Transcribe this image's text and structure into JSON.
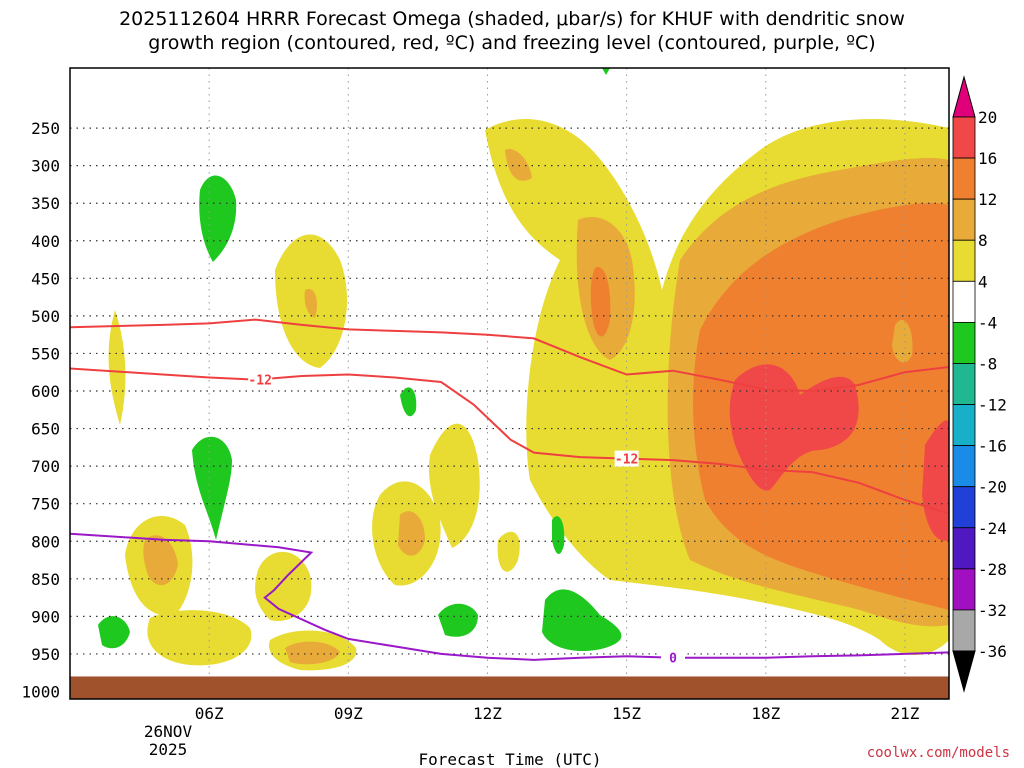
{
  "title": {
    "line1": "2025112604 HRRR Forecast Omega (shaded, μbar/s) for KHUF with dendritic snow",
    "line2": "growth region (contoured, red, ºC) and freezing level (contoured, purple, ºC)"
  },
  "credit": "coolwx.com/models",
  "chart_data": {
    "type": "heatmap",
    "title": "2025112604 HRRR Forecast Omega (shaded, μbar/s) for KHUF with dendritic snow growth region (contoured, red, ºC) and freezing level (contoured, purple, ºC)",
    "xlabel": "Forecast Time (UTC)",
    "ylabel": "",
    "x_ticks": [
      "06Z",
      "09Z",
      "12Z",
      "15Z",
      "18Z",
      "21Z"
    ],
    "x_date_label": [
      "26NOV",
      "2025"
    ],
    "x_range_hours_since_00Z": [
      3.0,
      21.95
    ],
    "y_ticks": [
      250,
      300,
      350,
      400,
      450,
      500,
      550,
      600,
      650,
      700,
      750,
      800,
      850,
      900,
      950,
      1000
    ],
    "y_range_mb": [
      170,
      1010
    ],
    "ground_level_mb": 980,
    "colorbar": {
      "labels": [
        20,
        16,
        12,
        8,
        4,
        -4,
        -8,
        -12,
        -16,
        -20,
        -24,
        -28,
        -32,
        -36
      ],
      "bins": [
        {
          "range": ">20",
          "color": "#e0007a"
        },
        {
          "range": "16 to 20",
          "color": "#f04848"
        },
        {
          "range": "12 to 16",
          "color": "#ee8030"
        },
        {
          "range": "8 to 12",
          "color": "#e8aa38"
        },
        {
          "range": "4 to 8",
          "color": "#e8dc32"
        },
        {
          "range": "-4 to 4",
          "color": "#ffffff"
        },
        {
          "range": "-8 to -4",
          "color": "#1ec81e"
        },
        {
          "range": "-12 to -8",
          "color": "#20b890"
        },
        {
          "range": "-16 to -12",
          "color": "#18b0c8"
        },
        {
          "range": "-20 to -16",
          "color": "#1a8ce8"
        },
        {
          "range": "-24 to -20",
          "color": "#2040d8"
        },
        {
          "range": "-28 to -24",
          "color": "#5018c0"
        },
        {
          "range": "-32 to -28",
          "color": "#a010c0"
        },
        {
          "range": "-36 to -32",
          "color": "#a8a8a8"
        },
        {
          "range": "<-36",
          "color": "#000000"
        }
      ]
    },
    "contours": [
      {
        "name": "dendritic-top (-18C)",
        "color": "#ee4040",
        "label": "",
        "points": [
          [
            3.0,
            515
          ],
          [
            5.0,
            512
          ],
          [
            6.0,
            510
          ],
          [
            7.0,
            505
          ],
          [
            8.0,
            512
          ],
          [
            9.0,
            518
          ],
          [
            10.0,
            520
          ],
          [
            11.0,
            522
          ],
          [
            12.0,
            525
          ],
          [
            13.0,
            530
          ],
          [
            14.0,
            555
          ],
          [
            15.0,
            578
          ],
          [
            16.0,
            573
          ],
          [
            17.0,
            585
          ],
          [
            18.0,
            598
          ],
          [
            19.0,
            600
          ],
          [
            20.0,
            592
          ],
          [
            21.0,
            575
          ],
          [
            21.95,
            568
          ]
        ]
      },
      {
        "name": "dendritic-bottom (-12C)",
        "color": "#ee4040",
        "label": "-12",
        "points": [
          [
            3.0,
            570
          ],
          [
            5.0,
            578
          ],
          [
            6.0,
            582
          ],
          [
            7.0,
            585
          ],
          [
            8.0,
            580
          ],
          [
            9.0,
            578
          ],
          [
            10.0,
            582
          ],
          [
            11.0,
            588
          ],
          [
            11.7,
            618
          ],
          [
            12.5,
            665
          ],
          [
            13.0,
            682
          ],
          [
            14.0,
            688
          ],
          [
            15.0,
            690
          ],
          [
            16.0,
            692
          ],
          [
            17.0,
            697
          ],
          [
            18.0,
            705
          ],
          [
            19.0,
            708
          ],
          [
            20.0,
            722
          ],
          [
            21.0,
            745
          ],
          [
            21.95,
            763
          ]
        ]
      },
      {
        "name": "freezing-level (0C)",
        "color": "#9a18c8",
        "label": "0",
        "points": [
          [
            3.0,
            790
          ],
          [
            5.0,
            798
          ],
          [
            6.0,
            800
          ],
          [
            7.5,
            808
          ],
          [
            8.2,
            815
          ],
          [
            7.7,
            845
          ],
          [
            7.4,
            865
          ],
          [
            7.2,
            875
          ],
          [
            7.5,
            890
          ],
          [
            8.5,
            918
          ],
          [
            9.0,
            930
          ],
          [
            10.0,
            940
          ],
          [
            11.0,
            950
          ],
          [
            12.0,
            955
          ],
          [
            13.0,
            958
          ],
          [
            14.0,
            955
          ],
          [
            15.0,
            953
          ],
          [
            16.0,
            955
          ],
          [
            17.0,
            955
          ],
          [
            18.0,
            955
          ],
          [
            19.0,
            953
          ],
          [
            20.0,
            952
          ],
          [
            21.0,
            950
          ],
          [
            21.95,
            948
          ]
        ]
      }
    ]
  }
}
